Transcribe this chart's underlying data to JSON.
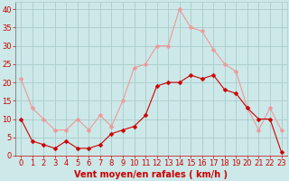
{
  "hours": [
    0,
    1,
    2,
    3,
    4,
    5,
    6,
    7,
    8,
    9,
    10,
    11,
    12,
    13,
    14,
    15,
    16,
    17,
    18,
    19,
    20,
    21,
    22,
    23
  ],
  "wind_avg": [
    10,
    4,
    3,
    2,
    4,
    2,
    2,
    3,
    6,
    7,
    8,
    11,
    19,
    20,
    20,
    22,
    21,
    22,
    18,
    17,
    13,
    10,
    10,
    1
  ],
  "wind_gust": [
    21,
    13,
    10,
    7,
    7,
    10,
    7,
    11,
    8,
    15,
    24,
    25,
    30,
    30,
    40,
    35,
    34,
    29,
    25,
    23,
    13,
    7,
    13,
    7
  ],
  "bg_color": "#cce8e8",
  "grid_color": "#aacccc",
  "line_avg_color": "#cc0000",
  "line_gust_color": "#ee9999",
  "marker_size": 2.5,
  "xlabel": "Vent moyen/en rafales ( km/h )",
  "xlabel_color": "#cc0000",
  "xlabel_fontsize": 7,
  "tick_color": "#cc0000",
  "tick_fontsize": 6,
  "ylim": [
    0,
    42
  ],
  "yticks": [
    0,
    5,
    10,
    15,
    20,
    25,
    30,
    35,
    40
  ],
  "xlim": [
    -0.5,
    23.5
  ],
  "spine_left_color": "#666666",
  "spine_bottom_color": "#cc0000"
}
